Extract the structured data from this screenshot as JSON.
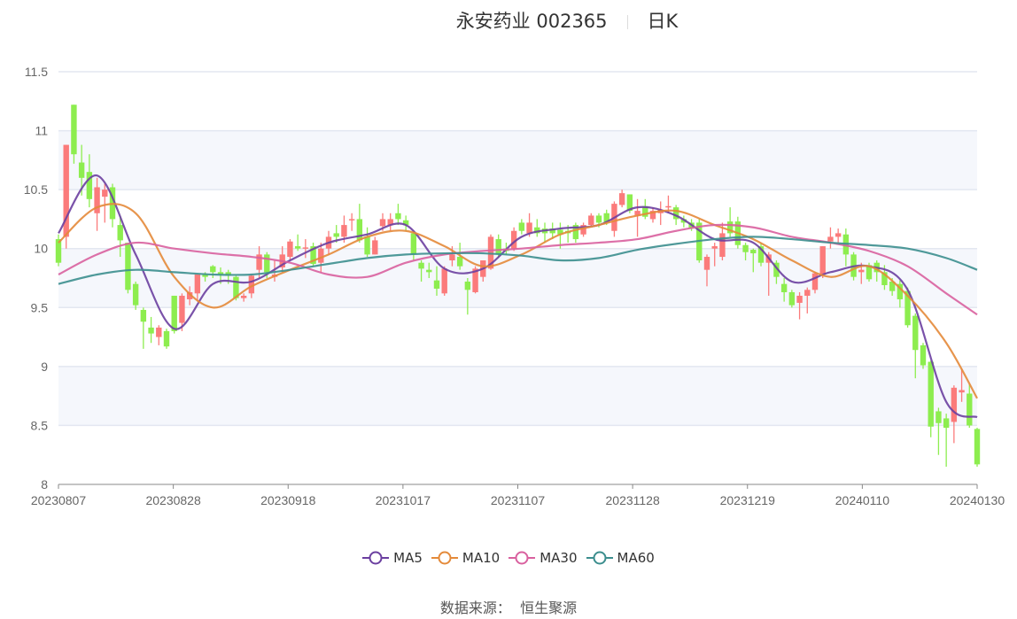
{
  "header": {
    "stock_name_code": "永安药业 002365",
    "period": "日K"
  },
  "footer": {
    "source_label": "数据来源：",
    "source_value": "恒生聚源"
  },
  "chart_data": {
    "type": "candlestick",
    "title": "永安药业 002365 日K",
    "ylim": [
      8,
      11.5
    ],
    "y_ticks": [
      "8",
      "8.5",
      "9",
      "9.5",
      "10",
      "10.5",
      "11",
      "11.5"
    ],
    "x_tick_labels": [
      "20230807",
      "20230828",
      "20230918",
      "20231017",
      "20231107",
      "20231128",
      "20231219",
      "20240110",
      "20240130"
    ],
    "grid": true,
    "legend_position": "bottom",
    "colors": {
      "up": "#fb7b7b",
      "down": "#8ded4f",
      "MA5": "#6b3fa0",
      "MA10": "#e48a3a",
      "MA30": "#d9619f",
      "MA60": "#3c8e8e",
      "band": "#f5f7fc",
      "grid": "#e3e7f1"
    },
    "candle_fields": [
      "open",
      "close",
      "low",
      "high"
    ],
    "candles": [
      [
        10.08,
        9.88,
        9.85,
        10.12
      ],
      [
        10.1,
        10.88,
        10.0,
        10.88
      ],
      [
        11.22,
        10.8,
        10.72,
        11.22
      ],
      [
        10.73,
        10.6,
        10.45,
        10.88
      ],
      [
        10.65,
        10.42,
        10.35,
        10.8
      ],
      [
        10.3,
        10.52,
        10.15,
        10.6
      ],
      [
        10.44,
        10.5,
        10.22,
        10.55
      ],
      [
        10.52,
        10.25,
        10.18,
        10.55
      ],
      [
        10.2,
        10.07,
        9.93,
        10.28
      ],
      [
        10.05,
        9.65,
        9.62,
        10.05
      ],
      [
        9.7,
        9.52,
        9.48,
        9.72
      ],
      [
        9.48,
        9.38,
        9.15,
        9.5
      ],
      [
        9.33,
        9.28,
        9.2,
        9.42
      ],
      [
        9.25,
        9.33,
        9.18,
        9.35
      ],
      [
        9.3,
        9.17,
        9.15,
        9.32
      ],
      [
        9.6,
        9.3,
        9.28,
        9.6
      ],
      [
        9.37,
        9.6,
        9.3,
        9.62
      ],
      [
        9.57,
        9.63,
        9.52,
        9.68
      ],
      [
        9.62,
        9.78,
        9.55,
        9.78
      ],
      [
        9.78,
        9.76,
        9.72,
        9.8
      ],
      [
        9.85,
        9.8,
        9.75,
        9.86
      ],
      [
        9.8,
        9.78,
        9.7,
        9.84
      ],
      [
        9.8,
        9.77,
        9.7,
        9.82
      ],
      [
        9.76,
        9.58,
        9.56,
        9.77
      ],
      [
        9.58,
        9.6,
        9.55,
        9.62
      ],
      [
        9.62,
        9.77,
        9.58,
        9.78
      ],
      [
        9.82,
        9.95,
        9.75,
        10.02
      ],
      [
        9.95,
        9.8,
        9.75,
        9.97
      ],
      [
        9.76,
        9.78,
        9.72,
        9.9
      ],
      [
        9.84,
        9.95,
        9.8,
        10.02
      ],
      [
        9.93,
        10.06,
        9.9,
        10.08
      ],
      [
        10.02,
        10.0,
        9.98,
        10.12
      ],
      [
        10.0,
        10.01,
        9.92,
        10.08
      ],
      [
        10.02,
        9.87,
        9.85,
        10.05
      ],
      [
        9.88,
        10.0,
        9.8,
        10.05
      ],
      [
        10.0,
        10.1,
        9.95,
        10.15
      ],
      [
        10.13,
        10.1,
        10.05,
        10.2
      ],
      [
        10.1,
        10.2,
        10.05,
        10.28
      ],
      [
        10.24,
        10.25,
        10.15,
        10.3
      ],
      [
        10.25,
        10.07,
        10.05,
        10.38
      ],
      [
        10.1,
        9.95,
        9.93,
        10.18
      ],
      [
        9.95,
        10.07,
        9.95,
        10.1
      ],
      [
        10.19,
        10.25,
        10.15,
        10.3
      ],
      [
        10.2,
        10.25,
        10.15,
        10.3
      ],
      [
        10.3,
        10.25,
        10.2,
        10.38
      ],
      [
        10.24,
        10.2,
        10.15,
        10.28
      ],
      [
        10.13,
        9.95,
        9.9,
        10.15
      ],
      [
        9.88,
        9.83,
        9.72,
        9.9
      ],
      [
        9.82,
        9.8,
        9.75,
        9.88
      ],
      [
        9.73,
        9.66,
        9.6,
        9.85
      ],
      [
        9.62,
        9.83,
        9.6,
        9.85
      ],
      [
        9.9,
        9.95,
        9.85,
        10.02
      ],
      [
        9.93,
        9.85,
        9.82,
        10.05
      ],
      [
        9.72,
        9.65,
        9.44,
        9.75
      ],
      [
        9.63,
        9.83,
        9.62,
        9.85
      ],
      [
        9.76,
        9.9,
        9.72,
        9.9
      ],
      [
        9.83,
        10.1,
        9.82,
        10.12
      ],
      [
        10.08,
        9.95,
        9.92,
        10.12
      ],
      [
        10.0,
        9.98,
        9.95,
        10.05
      ],
      [
        10.0,
        10.15,
        9.98,
        10.18
      ],
      [
        10.22,
        10.15,
        10.12,
        10.25
      ],
      [
        10.13,
        10.22,
        10.1,
        10.3
      ],
      [
        10.18,
        10.13,
        10.1,
        10.25
      ],
      [
        10.17,
        10.13,
        10.05,
        10.22
      ],
      [
        10.17,
        10.13,
        10.08,
        10.22
      ],
      [
        10.16,
        10.12,
        10.0,
        10.22
      ],
      [
        10.15,
        10.13,
        10.05,
        10.2
      ],
      [
        10.2,
        10.08,
        10.05,
        10.22
      ],
      [
        10.12,
        10.2,
        10.1,
        10.22
      ],
      [
        10.2,
        10.28,
        10.18,
        10.3
      ],
      [
        10.28,
        10.22,
        10.18,
        10.3
      ],
      [
        10.3,
        10.22,
        10.2,
        10.33
      ],
      [
        10.15,
        10.38,
        10.1,
        10.4
      ],
      [
        10.37,
        10.47,
        10.35,
        10.5
      ],
      [
        10.46,
        10.32,
        10.3,
        10.46
      ],
      [
        10.28,
        10.32,
        10.1,
        10.42
      ],
      [
        10.36,
        10.27,
        10.25,
        10.42
      ],
      [
        10.25,
        10.32,
        10.22,
        10.35
      ],
      [
        10.3,
        10.33,
        10.2,
        10.4
      ],
      [
        10.35,
        10.36,
        10.3,
        10.45
      ],
      [
        10.35,
        10.25,
        10.2,
        10.37
      ],
      [
        10.25,
        10.22,
        10.18,
        10.28
      ],
      [
        10.22,
        10.17,
        10.15,
        10.25
      ],
      [
        10.22,
        9.9,
        9.88,
        10.25
      ],
      [
        9.82,
        9.93,
        9.68,
        9.95
      ],
      [
        10.0,
        10.02,
        9.85,
        10.05
      ],
      [
        9.93,
        10.13,
        9.9,
        10.22
      ],
      [
        10.23,
        10.13,
        10.1,
        10.35
      ],
      [
        10.23,
        10.03,
        10.0,
        10.27
      ],
      [
        10.03,
        9.97,
        9.9,
        10.05
      ],
      [
        9.99,
        9.96,
        9.8,
        10.0
      ],
      [
        10.02,
        9.88,
        9.85,
        10.05
      ],
      [
        9.88,
        9.95,
        9.6,
        9.97
      ],
      [
        9.88,
        9.76,
        9.7,
        9.9
      ],
      [
        9.7,
        9.63,
        9.55,
        9.75
      ],
      [
        9.63,
        9.52,
        9.5,
        9.65
      ],
      [
        9.54,
        9.6,
        9.4,
        9.63
      ],
      [
        9.6,
        9.65,
        9.45,
        9.67
      ],
      [
        9.65,
        9.79,
        9.62,
        9.8
      ],
      [
        9.78,
        10.02,
        9.75,
        10.02
      ],
      [
        10.06,
        10.1,
        10.0,
        10.18
      ],
      [
        10.1,
        10.13,
        10.05,
        10.17
      ],
      [
        10.12,
        9.95,
        9.85,
        10.17
      ],
      [
        9.95,
        9.76,
        9.73,
        9.97
      ],
      [
        9.8,
        9.82,
        9.7,
        9.88
      ],
      [
        9.86,
        9.74,
        9.72,
        9.88
      ],
      [
        9.88,
        9.8,
        9.72,
        9.9
      ],
      [
        9.8,
        9.69,
        9.65,
        9.86
      ],
      [
        9.72,
        9.64,
        9.6,
        9.75
      ],
      [
        9.7,
        9.57,
        9.5,
        9.73
      ],
      [
        9.64,
        9.35,
        9.33,
        9.67
      ],
      [
        9.43,
        9.14,
        8.9,
        9.45
      ],
      [
        9.18,
        9.01,
        8.98,
        9.2
      ],
      [
        9.04,
        8.49,
        8.4,
        9.05
      ],
      [
        8.62,
        8.52,
        8.25,
        8.65
      ],
      [
        8.56,
        8.48,
        8.15,
        8.6
      ],
      [
        8.53,
        8.82,
        8.35,
        8.84
      ],
      [
        8.78,
        8.8,
        8.7,
        8.98
      ],
      [
        8.77,
        8.5,
        8.48,
        8.85
      ],
      [
        8.47,
        8.17,
        8.15,
        8.48
      ]
    ],
    "series": [
      {
        "name": "MA5",
        "candle_index": [
          0,
          5,
          10,
          15,
          20,
          25,
          30,
          35,
          40,
          45,
          50,
          55,
          60,
          65,
          70,
          75,
          80,
          85,
          90,
          95,
          100,
          105,
          110,
          115,
          119
        ],
        "values": [
          10.13,
          10.62,
          9.95,
          9.32,
          9.7,
          9.72,
          9.9,
          10.05,
          10.12,
          10.2,
          9.83,
          9.83,
          10.1,
          10.17,
          10.2,
          10.35,
          10.28,
          10.08,
          10.05,
          9.72,
          9.8,
          9.85,
          9.65,
          8.7,
          8.57
        ]
      },
      {
        "name": "MA10",
        "candle_index": [
          0,
          5,
          10,
          15,
          20,
          25,
          30,
          35,
          40,
          45,
          50,
          55,
          60,
          65,
          70,
          75,
          80,
          85,
          90,
          95,
          100,
          105,
          110,
          115,
          119
        ],
        "values": [
          10.05,
          10.35,
          10.3,
          9.76,
          9.5,
          9.68,
          9.82,
          9.95,
          10.1,
          10.15,
          10.02,
          9.85,
          9.95,
          10.12,
          10.2,
          10.28,
          10.32,
          10.2,
          10.08,
          9.9,
          9.76,
          9.85,
          9.6,
          9.2,
          8.73
        ]
      },
      {
        "name": "MA30",
        "candle_index": [
          0,
          5,
          10,
          15,
          20,
          25,
          30,
          35,
          40,
          45,
          50,
          55,
          60,
          65,
          70,
          75,
          80,
          85,
          90,
          95,
          100,
          105,
          110,
          115,
          119
        ],
        "values": [
          9.78,
          9.95,
          10.05,
          10.0,
          9.96,
          9.93,
          9.88,
          9.78,
          9.76,
          9.88,
          9.95,
          9.98,
          10.0,
          10.03,
          10.05,
          10.08,
          10.15,
          10.2,
          10.18,
          10.1,
          10.05,
          9.98,
          9.85,
          9.62,
          9.44
        ]
      },
      {
        "name": "MA60",
        "candle_index": [
          0,
          5,
          10,
          15,
          20,
          25,
          30,
          35,
          40,
          45,
          50,
          55,
          60,
          65,
          70,
          75,
          80,
          85,
          90,
          95,
          100,
          105,
          110,
          115,
          119
        ],
        "values": [
          9.7,
          9.78,
          9.82,
          9.8,
          9.78,
          9.78,
          9.82,
          9.87,
          9.92,
          9.95,
          9.96,
          9.96,
          9.94,
          9.9,
          9.92,
          9.99,
          10.04,
          10.08,
          10.1,
          10.08,
          10.05,
          10.03,
          10.0,
          9.92,
          9.82
        ]
      }
    ]
  }
}
